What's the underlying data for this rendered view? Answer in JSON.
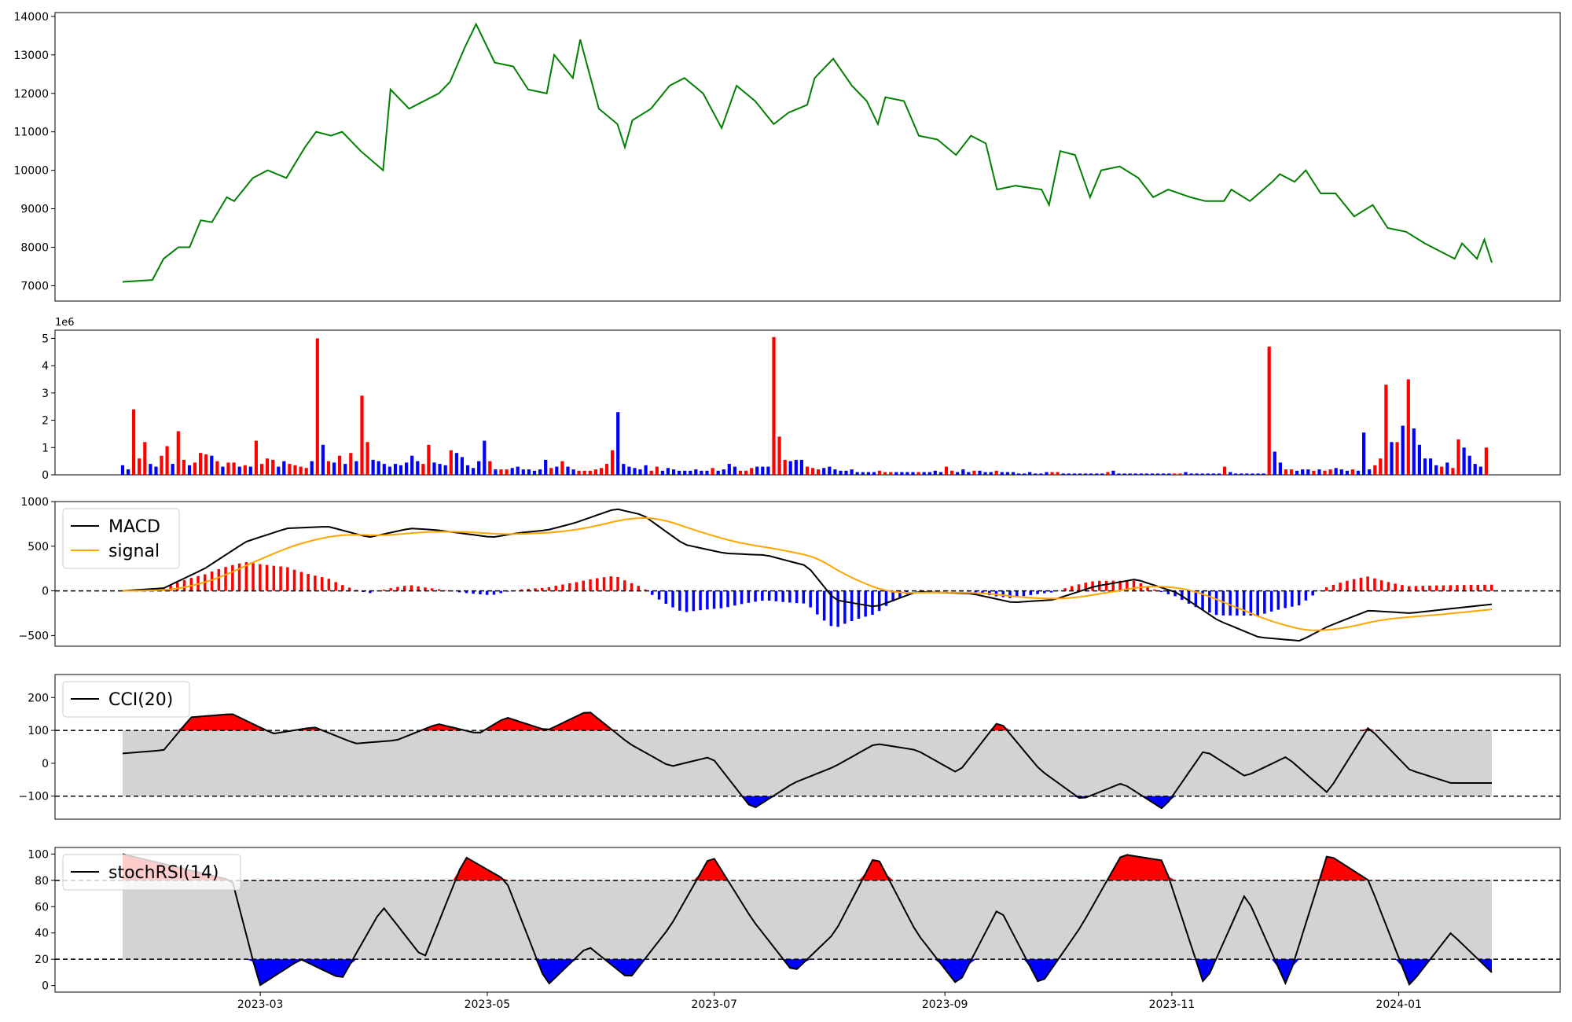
{
  "colors": {
    "price_line": "#008000",
    "up_bar": "#ff0000",
    "down_bar": "#0000ff",
    "macd_line": "#000000",
    "signal_line": "#ffa500",
    "band_fill": "#d3d3d3",
    "over_fill": "#ff0000",
    "under_fill": "#0000ff"
  },
  "x_axis": {
    "start": "2023-01-23",
    "end": "2024-01-26",
    "ticks": [
      "2023-03",
      "2023-05",
      "2023-07",
      "2023-09",
      "2023-11",
      "2024-01"
    ]
  },
  "chart_data": [
    {
      "type": "line",
      "name": "price",
      "ylim": [
        6600,
        14100
      ],
      "yticks": [
        "7000",
        "8000",
        "9000",
        "10000",
        "11000",
        "12000",
        "13000",
        "14000"
      ],
      "key_points": [
        [
          "2023-01-23",
          7100
        ],
        [
          "2023-01-31",
          7150
        ],
        [
          "2023-02-03",
          7700
        ],
        [
          "2023-02-07",
          8000
        ],
        [
          "2023-02-10",
          8000
        ],
        [
          "2023-02-13",
          8700
        ],
        [
          "2023-02-16",
          8650
        ],
        [
          "2023-02-20",
          9300
        ],
        [
          "2023-02-22",
          9200
        ],
        [
          "2023-02-27",
          9800
        ],
        [
          "2023-03-03",
          10000
        ],
        [
          "2023-03-08",
          9800
        ],
        [
          "2023-03-13",
          10600
        ],
        [
          "2023-03-16",
          11000
        ],
        [
          "2023-03-20",
          10900
        ],
        [
          "2023-03-23",
          11000
        ],
        [
          "2023-03-28",
          10500
        ],
        [
          "2023-04-03",
          10000
        ],
        [
          "2023-04-05",
          12100
        ],
        [
          "2023-04-10",
          11600
        ],
        [
          "2023-04-14",
          11800
        ],
        [
          "2023-04-18",
          12000
        ],
        [
          "2023-04-21",
          12300
        ],
        [
          "2023-04-25",
          13200
        ],
        [
          "2023-04-28",
          13800
        ],
        [
          "2023-05-03",
          12800
        ],
        [
          "2023-05-08",
          12700
        ],
        [
          "2023-05-12",
          12100
        ],
        [
          "2023-05-17",
          12000
        ],
        [
          "2023-05-19",
          13000
        ],
        [
          "2023-05-24",
          12400
        ],
        [
          "2023-05-26",
          13400
        ],
        [
          "2023-05-31",
          11600
        ],
        [
          "2023-06-05",
          11200
        ],
        [
          "2023-06-07",
          10600
        ],
        [
          "2023-06-09",
          11300
        ],
        [
          "2023-06-14",
          11600
        ],
        [
          "2023-06-19",
          12200
        ],
        [
          "2023-06-23",
          12400
        ],
        [
          "2023-06-28",
          12000
        ],
        [
          "2023-07-03",
          11100
        ],
        [
          "2023-07-07",
          12200
        ],
        [
          "2023-07-12",
          11800
        ],
        [
          "2023-07-17",
          11200
        ],
        [
          "2023-07-21",
          11500
        ],
        [
          "2023-07-26",
          11700
        ],
        [
          "2023-07-28",
          12400
        ],
        [
          "2023-08-02",
          12900
        ],
        [
          "2023-08-07",
          12200
        ],
        [
          "2023-08-11",
          11800
        ],
        [
          "2023-08-14",
          11200
        ],
        [
          "2023-08-16",
          11900
        ],
        [
          "2023-08-21",
          11800
        ],
        [
          "2023-08-25",
          10900
        ],
        [
          "2023-08-30",
          10800
        ],
        [
          "2023-09-04",
          10400
        ],
        [
          "2023-09-08",
          10900
        ],
        [
          "2023-09-12",
          10700
        ],
        [
          "2023-09-15",
          9500
        ],
        [
          "2023-09-20",
          9600
        ],
        [
          "2023-09-27",
          9500
        ],
        [
          "2023-09-29",
          9100
        ],
        [
          "2023-10-02",
          10500
        ],
        [
          "2023-10-06",
          10400
        ],
        [
          "2023-10-10",
          9300
        ],
        [
          "2023-10-13",
          10000
        ],
        [
          "2023-10-18",
          10100
        ],
        [
          "2023-10-23",
          9800
        ],
        [
          "2023-10-27",
          9300
        ],
        [
          "2023-10-31",
          9500
        ],
        [
          "2023-11-06",
          9300
        ],
        [
          "2023-11-10",
          9200
        ],
        [
          "2023-11-15",
          9200
        ],
        [
          "2023-11-17",
          9500
        ],
        [
          "2023-11-22",
          9200
        ],
        [
          "2023-11-28",
          9700
        ],
        [
          "2023-11-30",
          9900
        ],
        [
          "2023-12-04",
          9700
        ],
        [
          "2023-12-07",
          10000
        ],
        [
          "2023-12-11",
          9400
        ],
        [
          "2023-12-15",
          9400
        ],
        [
          "2023-12-20",
          8800
        ],
        [
          "2023-12-25",
          9100
        ],
        [
          "2023-12-29",
          8500
        ],
        [
          "2024-01-03",
          8400
        ],
        [
          "2024-01-08",
          8100
        ],
        [
          "2024-01-12",
          7900
        ],
        [
          "2024-01-16",
          7700
        ],
        [
          "2024-01-18",
          8100
        ],
        [
          "2024-01-22",
          7700
        ],
        [
          "2024-01-24",
          8200
        ],
        [
          "2024-01-26",
          7600
        ]
      ],
      "note_series": "approximate"
    },
    {
      "type": "bar",
      "name": "volume",
      "offset_label": "1e6",
      "ylim": [
        0,
        5.3
      ],
      "yticks": [
        "0",
        "1",
        "2",
        "3",
        "4",
        "5"
      ],
      "bars": [
        [
          0.35,
          0
        ],
        [
          0.2,
          0
        ],
        [
          2.4,
          1
        ],
        [
          0.6,
          1
        ],
        [
          1.2,
          1
        ],
        [
          0.4,
          0
        ],
        [
          0.3,
          0
        ],
        [
          0.7,
          1
        ],
        [
          1.05,
          1
        ],
        [
          0.4,
          0
        ],
        [
          1.6,
          1
        ],
        [
          0.55,
          1
        ],
        [
          0.35,
          0
        ],
        [
          0.45,
          1
        ],
        [
          0.8,
          1
        ],
        [
          0.75,
          1
        ],
        [
          0.7,
          0
        ],
        [
          0.5,
          1
        ],
        [
          0.3,
          0
        ],
        [
          0.45,
          1
        ],
        [
          0.45,
          1
        ],
        [
          0.3,
          0
        ],
        [
          0.35,
          1
        ],
        [
          0.3,
          0
        ],
        [
          1.25,
          1
        ],
        [
          0.4,
          1
        ],
        [
          0.6,
          1
        ],
        [
          0.55,
          1
        ],
        [
          0.3,
          0
        ],
        [
          0.5,
          0
        ],
        [
          0.4,
          1
        ],
        [
          0.35,
          1
        ],
        [
          0.3,
          1
        ],
        [
          0.25,
          1
        ],
        [
          0.5,
          0
        ],
        [
          5.0,
          1
        ],
        [
          1.1,
          0
        ],
        [
          0.5,
          1
        ],
        [
          0.45,
          0
        ],
        [
          0.7,
          1
        ],
        [
          0.4,
          0
        ],
        [
          0.8,
          1
        ],
        [
          0.5,
          0
        ],
        [
          2.9,
          1
        ],
        [
          1.2,
          1
        ],
        [
          0.55,
          0
        ],
        [
          0.5,
          0
        ],
        [
          0.4,
          0
        ],
        [
          0.3,
          0
        ],
        [
          0.4,
          0
        ],
        [
          0.35,
          0
        ],
        [
          0.45,
          0
        ],
        [
          0.7,
          0
        ],
        [
          0.5,
          0
        ],
        [
          0.4,
          1
        ],
        [
          1.1,
          1
        ],
        [
          0.45,
          0
        ],
        [
          0.4,
          0
        ],
        [
          0.35,
          0
        ],
        [
          0.9,
          1
        ],
        [
          0.8,
          0
        ],
        [
          0.65,
          0
        ],
        [
          0.35,
          0
        ],
        [
          0.25,
          0
        ],
        [
          0.5,
          0
        ],
        [
          1.25,
          0
        ],
        [
          0.5,
          1
        ],
        [
          0.2,
          0
        ],
        [
          0.2,
          1
        ],
        [
          0.2,
          1
        ],
        [
          0.25,
          0
        ],
        [
          0.3,
          0
        ],
        [
          0.2,
          0
        ],
        [
          0.2,
          0
        ],
        [
          0.15,
          0
        ],
        [
          0.2,
          0
        ],
        [
          0.55,
          0
        ],
        [
          0.25,
          1
        ],
        [
          0.3,
          0
        ],
        [
          0.5,
          1
        ],
        [
          0.3,
          0
        ],
        [
          0.2,
          0
        ],
        [
          0.15,
          1
        ],
        [
          0.15,
          1
        ],
        [
          0.15,
          1
        ],
        [
          0.2,
          1
        ],
        [
          0.25,
          1
        ],
        [
          0.4,
          1
        ],
        [
          0.9,
          1
        ],
        [
          2.3,
          0
        ],
        [
          0.4,
          0
        ],
        [
          0.3,
          0
        ],
        [
          0.25,
          0
        ],
        [
          0.2,
          0
        ],
        [
          0.35,
          0
        ],
        [
          0.15,
          1
        ],
        [
          0.3,
          1
        ],
        [
          0.15,
          0
        ],
        [
          0.25,
          0
        ],
        [
          0.2,
          0
        ],
        [
          0.15,
          0
        ],
        [
          0.15,
          0
        ],
        [
          0.15,
          0
        ],
        [
          0.2,
          0
        ],
        [
          0.15,
          0
        ],
        [
          0.15,
          0
        ],
        [
          0.25,
          1
        ],
        [
          0.15,
          0
        ],
        [
          0.2,
          0
        ],
        [
          0.4,
          0
        ],
        [
          0.3,
          0
        ],
        [
          0.15,
          1
        ],
        [
          0.15,
          1
        ],
        [
          0.25,
          1
        ],
        [
          0.3,
          0
        ],
        [
          0.3,
          0
        ],
        [
          0.3,
          0
        ],
        [
          5.05,
          1
        ],
        [
          1.4,
          1
        ],
        [
          0.55,
          1
        ],
        [
          0.5,
          0
        ],
        [
          0.55,
          0
        ],
        [
          0.55,
          0
        ],
        [
          0.3,
          1
        ],
        [
          0.25,
          1
        ],
        [
          0.2,
          1
        ],
        [
          0.25,
          0
        ],
        [
          0.3,
          0
        ],
        [
          0.2,
          0
        ],
        [
          0.15,
          0
        ],
        [
          0.15,
          0
        ],
        [
          0.2,
          0
        ],
        [
          0.1,
          0
        ],
        [
          0.1,
          0
        ],
        [
          0.1,
          0
        ],
        [
          0.1,
          0
        ],
        [
          0.15,
          1
        ],
        [
          0.1,
          1
        ],
        [
          0.1,
          1
        ],
        [
          0.1,
          0
        ],
        [
          0.1,
          0
        ],
        [
          0.1,
          0
        ],
        [
          0.1,
          0
        ],
        [
          0.1,
          1
        ],
        [
          0.1,
          0
        ],
        [
          0.1,
          0
        ],
        [
          0.15,
          0
        ],
        [
          0.1,
          0
        ],
        [
          0.3,
          1
        ],
        [
          0.15,
          1
        ],
        [
          0.1,
          0
        ],
        [
          0.2,
          0
        ],
        [
          0.1,
          0
        ],
        [
          0.15,
          1
        ],
        [
          0.15,
          0
        ],
        [
          0.1,
          0
        ],
        [
          0.1,
          0
        ],
        [
          0.15,
          1
        ],
        [
          0.1,
          0
        ],
        [
          0.1,
          0
        ],
        [
          0.1,
          0
        ],
        [
          0.05,
          0
        ],
        [
          0.05,
          0
        ],
        [
          0.1,
          0
        ],
        [
          0.05,
          0
        ],
        [
          0.05,
          0
        ],
        [
          0.1,
          0
        ],
        [
          0.1,
          1
        ],
        [
          0.1,
          1
        ],
        [
          0.05,
          0
        ],
        [
          0.05,
          0
        ],
        [
          0.05,
          0
        ],
        [
          0.05,
          0
        ],
        [
          0.05,
          0
        ],
        [
          0.05,
          0
        ],
        [
          0.05,
          0
        ],
        [
          0.05,
          0
        ],
        [
          0.1,
          1
        ],
        [
          0.15,
          0
        ],
        [
          0.05,
          0
        ],
        [
          0.05,
          0
        ],
        [
          0.05,
          0
        ],
        [
          0.05,
          0
        ],
        [
          0.05,
          0
        ],
        [
          0.05,
          0
        ],
        [
          0.05,
          0
        ],
        [
          0.05,
          0
        ],
        [
          0.05,
          0
        ],
        [
          0.05,
          0
        ],
        [
          0.05,
          1
        ],
        [
          0.05,
          1
        ],
        [
          0.1,
          0
        ],
        [
          0.05,
          0
        ],
        [
          0.05,
          0
        ],
        [
          0.05,
          0
        ],
        [
          0.05,
          0
        ],
        [
          0.05,
          0
        ],
        [
          0.05,
          0
        ],
        [
          0.3,
          1
        ],
        [
          0.1,
          0
        ],
        [
          0.05,
          0
        ],
        [
          0.05,
          0
        ],
        [
          0.05,
          0
        ],
        [
          0.05,
          0
        ],
        [
          0.05,
          0
        ],
        [
          0.05,
          0
        ],
        [
          4.7,
          1
        ],
        [
          0.85,
          0
        ],
        [
          0.45,
          0
        ],
        [
          0.2,
          1
        ],
        [
          0.2,
          1
        ],
        [
          0.15,
          0
        ],
        [
          0.2,
          0
        ],
        [
          0.2,
          0
        ],
        [
          0.15,
          1
        ],
        [
          0.2,
          0
        ],
        [
          0.15,
          1
        ],
        [
          0.2,
          1
        ],
        [
          0.25,
          0
        ],
        [
          0.2,
          0
        ],
        [
          0.15,
          0
        ],
        [
          0.2,
          1
        ],
        [
          0.15,
          0
        ],
        [
          1.55,
          0
        ],
        [
          0.2,
          0
        ],
        [
          0.35,
          1
        ],
        [
          0.6,
          1
        ],
        [
          3.3,
          1
        ],
        [
          1.2,
          0
        ],
        [
          1.2,
          1
        ],
        [
          1.8,
          0
        ],
        [
          3.5,
          1
        ],
        [
          1.7,
          0
        ],
        [
          1.1,
          0
        ],
        [
          0.6,
          0
        ],
        [
          0.6,
          0
        ],
        [
          0.35,
          0
        ],
        [
          0.3,
          1
        ],
        [
          0.45,
          0
        ],
        [
          0.25,
          1
        ],
        [
          1.3,
          1
        ],
        [
          1.0,
          0
        ],
        [
          0.7,
          0
        ],
        [
          0.4,
          0
        ],
        [
          0.3,
          0
        ],
        [
          1.0,
          1
        ]
      ]
    },
    {
      "type": "line",
      "name": "macd",
      "ylim": [
        -620,
        1000
      ],
      "yticks": [
        "−500",
        "0",
        "500",
        "1000"
      ],
      "legend": [
        "MACD",
        "signal"
      ],
      "zero_line": 0
    },
    {
      "type": "area",
      "name": "cci",
      "ylim": [
        -170,
        270
      ],
      "yticks": [
        "−100",
        "0",
        "100",
        "200"
      ],
      "legend": [
        "CCI(20)"
      ],
      "thresholds": [
        100,
        -100
      ]
    },
    {
      "type": "area",
      "name": "stochrsi",
      "ylim": [
        -5,
        105
      ],
      "yticks": [
        "0",
        "20",
        "40",
        "60",
        "80",
        "100"
      ],
      "legend": [
        "stochRSI(14)"
      ],
      "thresholds": [
        80,
        20
      ]
    }
  ]
}
